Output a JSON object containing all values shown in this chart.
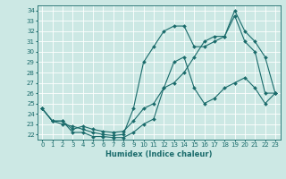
{
  "title": "",
  "xlabel": "Humidex (Indice chaleur)",
  "ylabel": "",
  "bg_color": "#cce8e4",
  "grid_color": "#ffffff",
  "line_color": "#1a6b6b",
  "xlim": [
    -0.5,
    23.5
  ],
  "ylim": [
    21.5,
    34.5
  ],
  "xticks": [
    0,
    1,
    2,
    3,
    4,
    5,
    6,
    7,
    8,
    9,
    10,
    11,
    12,
    13,
    14,
    15,
    16,
    17,
    18,
    19,
    20,
    21,
    22,
    23
  ],
  "yticks": [
    22,
    23,
    24,
    25,
    26,
    27,
    28,
    29,
    30,
    31,
    32,
    33,
    34
  ],
  "line1_x": [
    0,
    1,
    2,
    3,
    4,
    5,
    6,
    7,
    8,
    9,
    10,
    11,
    12,
    13,
    14,
    15,
    16,
    17,
    18,
    19,
    20,
    21,
    22,
    23
  ],
  "line1_y": [
    24.5,
    23.3,
    23.3,
    22.2,
    22.2,
    21.8,
    21.8,
    21.7,
    21.7,
    22.2,
    23.0,
    23.5,
    26.5,
    29.0,
    29.5,
    26.5,
    25.0,
    25.5,
    26.5,
    27.0,
    27.5,
    26.5,
    25.0,
    26.0
  ],
  "line2_x": [
    0,
    1,
    2,
    3,
    4,
    5,
    6,
    7,
    8,
    9,
    10,
    11,
    12,
    13,
    14,
    15,
    16,
    17,
    18,
    19,
    20,
    21,
    22,
    23
  ],
  "line2_y": [
    24.5,
    23.3,
    23.0,
    22.8,
    22.5,
    22.2,
    22.0,
    21.9,
    22.0,
    24.5,
    29.0,
    30.5,
    32.0,
    32.5,
    32.5,
    30.5,
    30.5,
    31.0,
    31.5,
    34.0,
    32.0,
    31.0,
    29.5,
    26.0
  ],
  "line3_x": [
    0,
    1,
    2,
    3,
    4,
    5,
    6,
    7,
    8,
    9,
    10,
    11,
    12,
    13,
    14,
    15,
    16,
    17,
    18,
    19,
    20,
    21,
    22,
    23
  ],
  "line3_y": [
    24.5,
    23.3,
    23.3,
    22.5,
    22.8,
    22.5,
    22.3,
    22.2,
    22.3,
    23.3,
    24.5,
    25.0,
    26.5,
    27.0,
    28.0,
    29.5,
    31.0,
    31.5,
    31.5,
    33.5,
    31.0,
    30.0,
    26.0,
    26.0
  ],
  "xlabel_fontsize": 6.0,
  "tick_fontsize": 5.0,
  "marker_size": 2.0,
  "line_width": 0.8
}
